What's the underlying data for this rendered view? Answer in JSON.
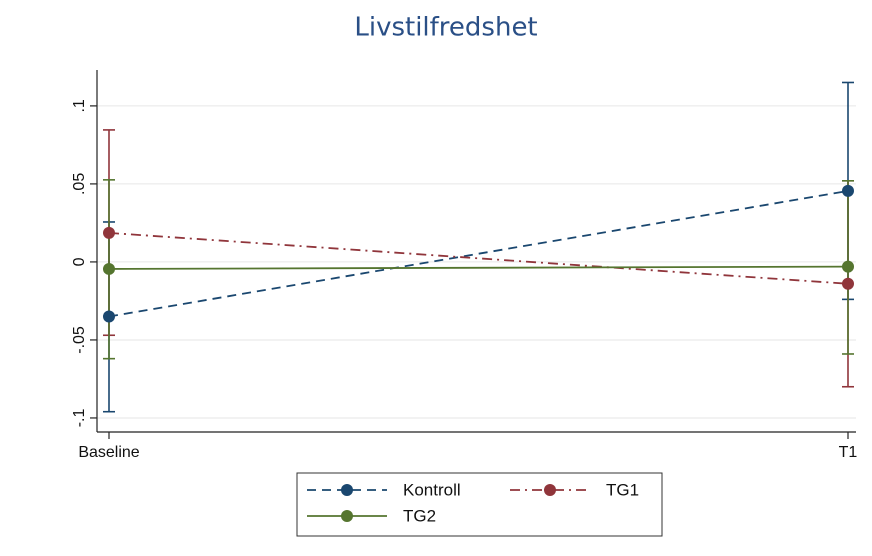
{
  "chart_data": {
    "type": "line",
    "title": "Livstilfredshet",
    "categories": [
      "Baseline",
      "T1"
    ],
    "ylim": [
      -0.109,
      0.123
    ],
    "yticks": [
      {
        "value": 0.1,
        "label": ".1"
      },
      {
        "value": 0.05,
        "label": ".05"
      },
      0,
      {
        "value": -0.05,
        "label": "-.05"
      },
      {
        "value": -0.1,
        "label": "-.1"
      }
    ],
    "grid": true,
    "legend": "bottom",
    "series": [
      {
        "name": "Kontroll",
        "color": "#1a476f",
        "linestyle": "dashed",
        "values": [
          -0.035,
          0.0455
        ],
        "lower": [
          -0.096,
          -0.024
        ],
        "upper": [
          0.0256,
          0.115
        ]
      },
      {
        "name": "TG1",
        "color": "#90353b",
        "linestyle": "dashdot",
        "values": [
          0.0186,
          -0.014
        ],
        "lower": [
          -0.047,
          -0.08
        ],
        "upper": [
          0.0846,
          0.052
        ]
      },
      {
        "name": "TG2",
        "color": "#55752f",
        "linestyle": "solid",
        "values": [
          -0.0045,
          -0.003
        ],
        "lower": [
          -0.062,
          -0.059
        ],
        "upper": [
          0.0526,
          0.052
        ]
      }
    ]
  }
}
